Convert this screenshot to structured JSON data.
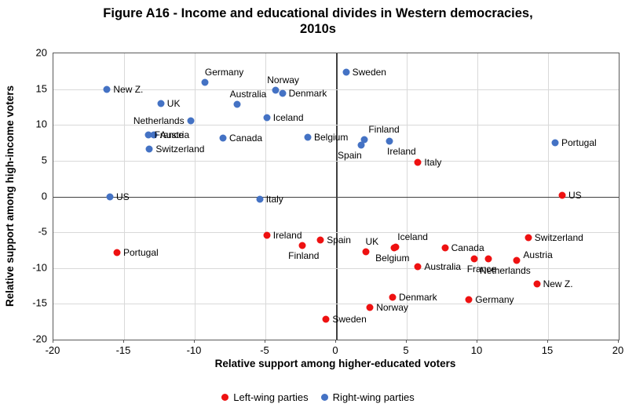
{
  "title": {
    "line1": "Figure A16 - Income and educational divides in Western democracies,",
    "line2": "2010s"
  },
  "chart_data": {
    "type": "scatter",
    "title": "Figure A16 - Income and educational divides in Western democracies, 2010s",
    "xlabel": "Relative support among higher-educated voters",
    "ylabel": "Relative support among high-income voters",
    "xlim": [
      -20,
      20
    ],
    "ylim": [
      -20,
      20
    ],
    "xticks": [
      -20,
      -15,
      -10,
      -5,
      0,
      5,
      10,
      15,
      20
    ],
    "yticks": [
      -20,
      -15,
      -10,
      -5,
      0,
      5,
      10,
      15,
      20
    ],
    "grid": true,
    "grid_color": "#d9d9d9",
    "axis_color": "#595959",
    "zero_line_color": "#404040",
    "legend": {
      "position": "bottom",
      "entries": [
        {
          "label": "Left-wing parties",
          "color": "#ee1111"
        },
        {
          "label": "Right-wing parties",
          "color": "#4472c4"
        }
      ]
    },
    "series": [
      {
        "name": "Right-wing parties",
        "color": "#4472c4",
        "points": [
          {
            "label": "Sweden",
            "x": 0.7,
            "y": 17.4,
            "lp": "right"
          },
          {
            "label": "Germany",
            "x": -9.3,
            "y": 15.9,
            "lp": "above",
            "dx": 25
          },
          {
            "label": "New Z.",
            "x": -16.2,
            "y": 15.0,
            "lp": "right"
          },
          {
            "label": "Norway",
            "x": -4.3,
            "y": 14.9,
            "lp": "above",
            "dx": 10
          },
          {
            "label": "Denmark",
            "x": -3.8,
            "y": 14.4,
            "lp": "right"
          },
          {
            "label": "UK",
            "x": -12.4,
            "y": 13.0,
            "lp": "right"
          },
          {
            "label": "Australia",
            "x": -7.0,
            "y": 12.9,
            "lp": "above",
            "dx": 14
          },
          {
            "label": "Iceland",
            "x": -4.9,
            "y": 11.0,
            "lp": "right"
          },
          {
            "label": "Netherlands",
            "x": -10.3,
            "y": 10.6,
            "lp": "left"
          },
          {
            "label": "France",
            "x": -13.3,
            "y": 8.6,
            "lp": "right"
          },
          {
            "label": "Austria",
            "x": -12.9,
            "y": 8.6,
            "lp": "right"
          },
          {
            "label": "Belgium",
            "x": -2.0,
            "y": 8.3,
            "lp": "right"
          },
          {
            "label": "Canada",
            "x": -8.0,
            "y": 8.2,
            "lp": "right"
          },
          {
            "label": "Finland",
            "x": 2.0,
            "y": 7.9,
            "lp": "above",
            "dx": 25
          },
          {
            "label": "Ireland",
            "x": 3.8,
            "y": 7.7,
            "lp": "below",
            "dx": 15
          },
          {
            "label": "Portugal",
            "x": 15.5,
            "y": 7.5,
            "lp": "right"
          },
          {
            "label": "Spain",
            "x": 1.8,
            "y": 7.2,
            "lp": "below",
            "dx": -15
          },
          {
            "label": "Switzerland",
            "x": -13.2,
            "y": 6.6,
            "lp": "right"
          },
          {
            "label": "US",
            "x": -16.0,
            "y": -0.1,
            "lp": "right"
          },
          {
            "label": "Italy",
            "x": -5.4,
            "y": -0.4,
            "lp": "right"
          }
        ]
      },
      {
        "name": "Left-wing parties",
        "color": "#ee1111",
        "points": [
          {
            "label": "Italy",
            "x": 5.8,
            "y": 4.8,
            "lp": "right"
          },
          {
            "label": "US",
            "x": 16.0,
            "y": 0.2,
            "lp": "right"
          },
          {
            "label": "Ireland",
            "x": -4.9,
            "y": -5.4,
            "lp": "right"
          },
          {
            "label": "Switzerland",
            "x": 13.6,
            "y": -5.8,
            "lp": "right"
          },
          {
            "label": "Spain",
            "x": -1.1,
            "y": -6.1,
            "lp": "right"
          },
          {
            "label": "Finland",
            "x": -2.4,
            "y": -6.8,
            "lp": "below",
            "dx": 2
          },
          {
            "label": "Iceland",
            "x": 4.2,
            "y": -7.1,
            "lp": "above",
            "dx": 22
          },
          {
            "label": "Belgium",
            "x": 4.1,
            "y": -7.2,
            "lp": "below",
            "dx": -2
          },
          {
            "label": "Canada",
            "x": 7.7,
            "y": -7.2,
            "lp": "right"
          },
          {
            "label": "UK",
            "x": 2.1,
            "y": -7.7,
            "lp": "above",
            "dx": 8
          },
          {
            "label": "Portugal",
            "x": -15.5,
            "y": -7.8,
            "lp": "right"
          },
          {
            "label": "France",
            "x": 9.8,
            "y": -8.7,
            "lp": "below",
            "dx": 9
          },
          {
            "label": "Netherlands",
            "x": 10.8,
            "y": -8.7,
            "lp": "below",
            "dx": 21,
            "dy": 2
          },
          {
            "label": "Austria",
            "x": 12.8,
            "y": -8.9,
            "lp": "right",
            "dy": -7
          },
          {
            "label": "Australia",
            "x": 5.8,
            "y": -9.8,
            "lp": "right"
          },
          {
            "label": "New Z.",
            "x": 14.2,
            "y": -12.2,
            "lp": "right"
          },
          {
            "label": "Denmark",
            "x": 4.0,
            "y": -14.1,
            "lp": "right"
          },
          {
            "label": "Germany",
            "x": 9.4,
            "y": -14.4,
            "lp": "right"
          },
          {
            "label": "Norway",
            "x": 2.4,
            "y": -15.5,
            "lp": "right"
          },
          {
            "label": "Sweden",
            "x": -0.7,
            "y": -17.1,
            "lp": "right"
          }
        ]
      }
    ]
  }
}
